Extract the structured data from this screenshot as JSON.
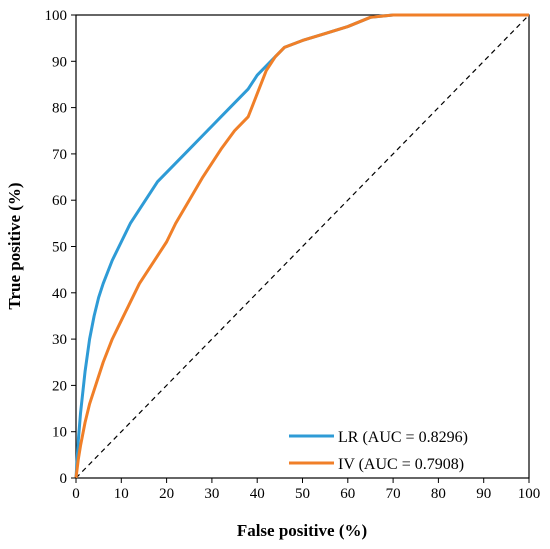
{
  "chart_data": {
    "type": "line",
    "title": "",
    "xlabel": "False positive (%)",
    "ylabel": "True positive (%)",
    "xlim": [
      0,
      100
    ],
    "ylim": [
      0,
      100
    ],
    "x_ticks": [
      "0",
      "10",
      "20",
      "30",
      "40",
      "50",
      "60",
      "70",
      "80",
      "90",
      "100"
    ],
    "y_ticks": [
      "0",
      "10",
      "20",
      "30",
      "40",
      "50",
      "60",
      "70",
      "80",
      "90",
      "100"
    ],
    "grid": false,
    "legend_position": "bottom-right",
    "reference_line": {
      "style": "dashed",
      "color": "#000000",
      "x": [
        0,
        100
      ],
      "y": [
        0,
        100
      ]
    },
    "series": [
      {
        "name": "LR (AUC = 0.8296)",
        "color": "#2E9BD6",
        "x": [
          0,
          0.5,
          1,
          2,
          3,
          4,
          5,
          6,
          8,
          10,
          12,
          14,
          16,
          18,
          20,
          22,
          25,
          28,
          30,
          32,
          35,
          38,
          40,
          42,
          44,
          46,
          50,
          55,
          60,
          65,
          70,
          80,
          90,
          100
        ],
        "y": [
          0,
          8,
          14,
          23,
          30,
          35,
          39,
          42,
          47,
          51,
          55,
          58,
          61,
          64,
          66,
          68,
          71,
          74,
          76,
          78,
          81,
          84,
          87,
          89,
          91,
          93,
          94.5,
          96,
          97.5,
          99.5,
          100,
          100,
          100,
          100
        ]
      },
      {
        "name": "IV (AUC = 0.7908)",
        "color": "#F07F28",
        "x": [
          0,
          0.5,
          1,
          2,
          3,
          4,
          5,
          6,
          8,
          10,
          12,
          14,
          16,
          18,
          20,
          22,
          25,
          28,
          30,
          32,
          35,
          38,
          40,
          42,
          44,
          46,
          50,
          55,
          60,
          65,
          70,
          80,
          90,
          100
        ],
        "y": [
          0,
          4,
          7,
          12,
          16,
          19,
          22,
          25,
          30,
          34,
          38,
          42,
          45,
          48,
          51,
          55,
          60,
          65,
          68,
          71,
          75,
          78,
          83,
          88,
          91,
          93,
          94.5,
          96,
          97.5,
          99.5,
          100,
          100,
          100,
          100
        ]
      }
    ]
  }
}
